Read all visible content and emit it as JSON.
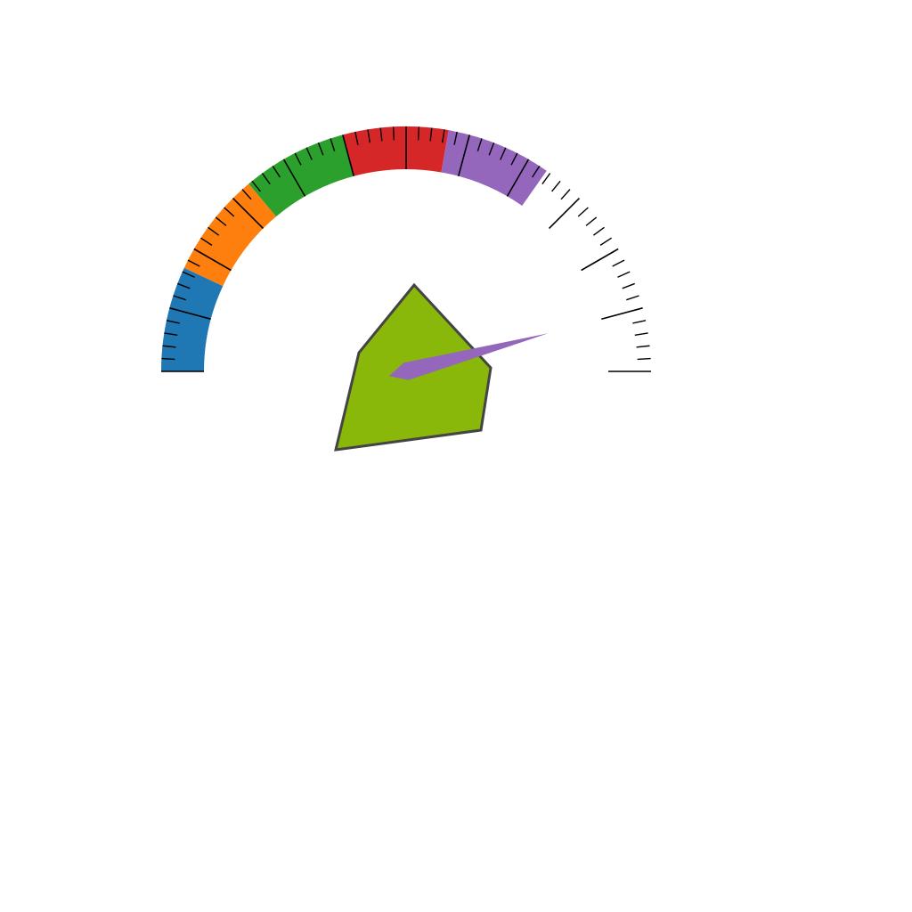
{
  "chart_data": {
    "type": "gauge",
    "range": [
      0,
      180
    ],
    "value": 165,
    "start_angle_deg": 180,
    "end_angle_deg": 0,
    "bands": [
      {
        "from": 0,
        "to": 25,
        "color": "#1f77b4"
      },
      {
        "from": 25,
        "to": 50,
        "color": "#ff7f0e"
      },
      {
        "from": 50,
        "to": 75,
        "color": "#2ca02c"
      },
      {
        "from": 75,
        "to": 100,
        "color": "#d62728"
      },
      {
        "from": 100,
        "to": 125,
        "color": "#9467bd"
      }
    ],
    "major_tick_step": 15,
    "minor_tick_step": 3,
    "needle_color": "#9467bd",
    "center_shape_color": "#8ab80a",
    "center_shape_stroke": "#444444",
    "tick_color": "#000000",
    "tick_labels": false,
    "title": ""
  }
}
